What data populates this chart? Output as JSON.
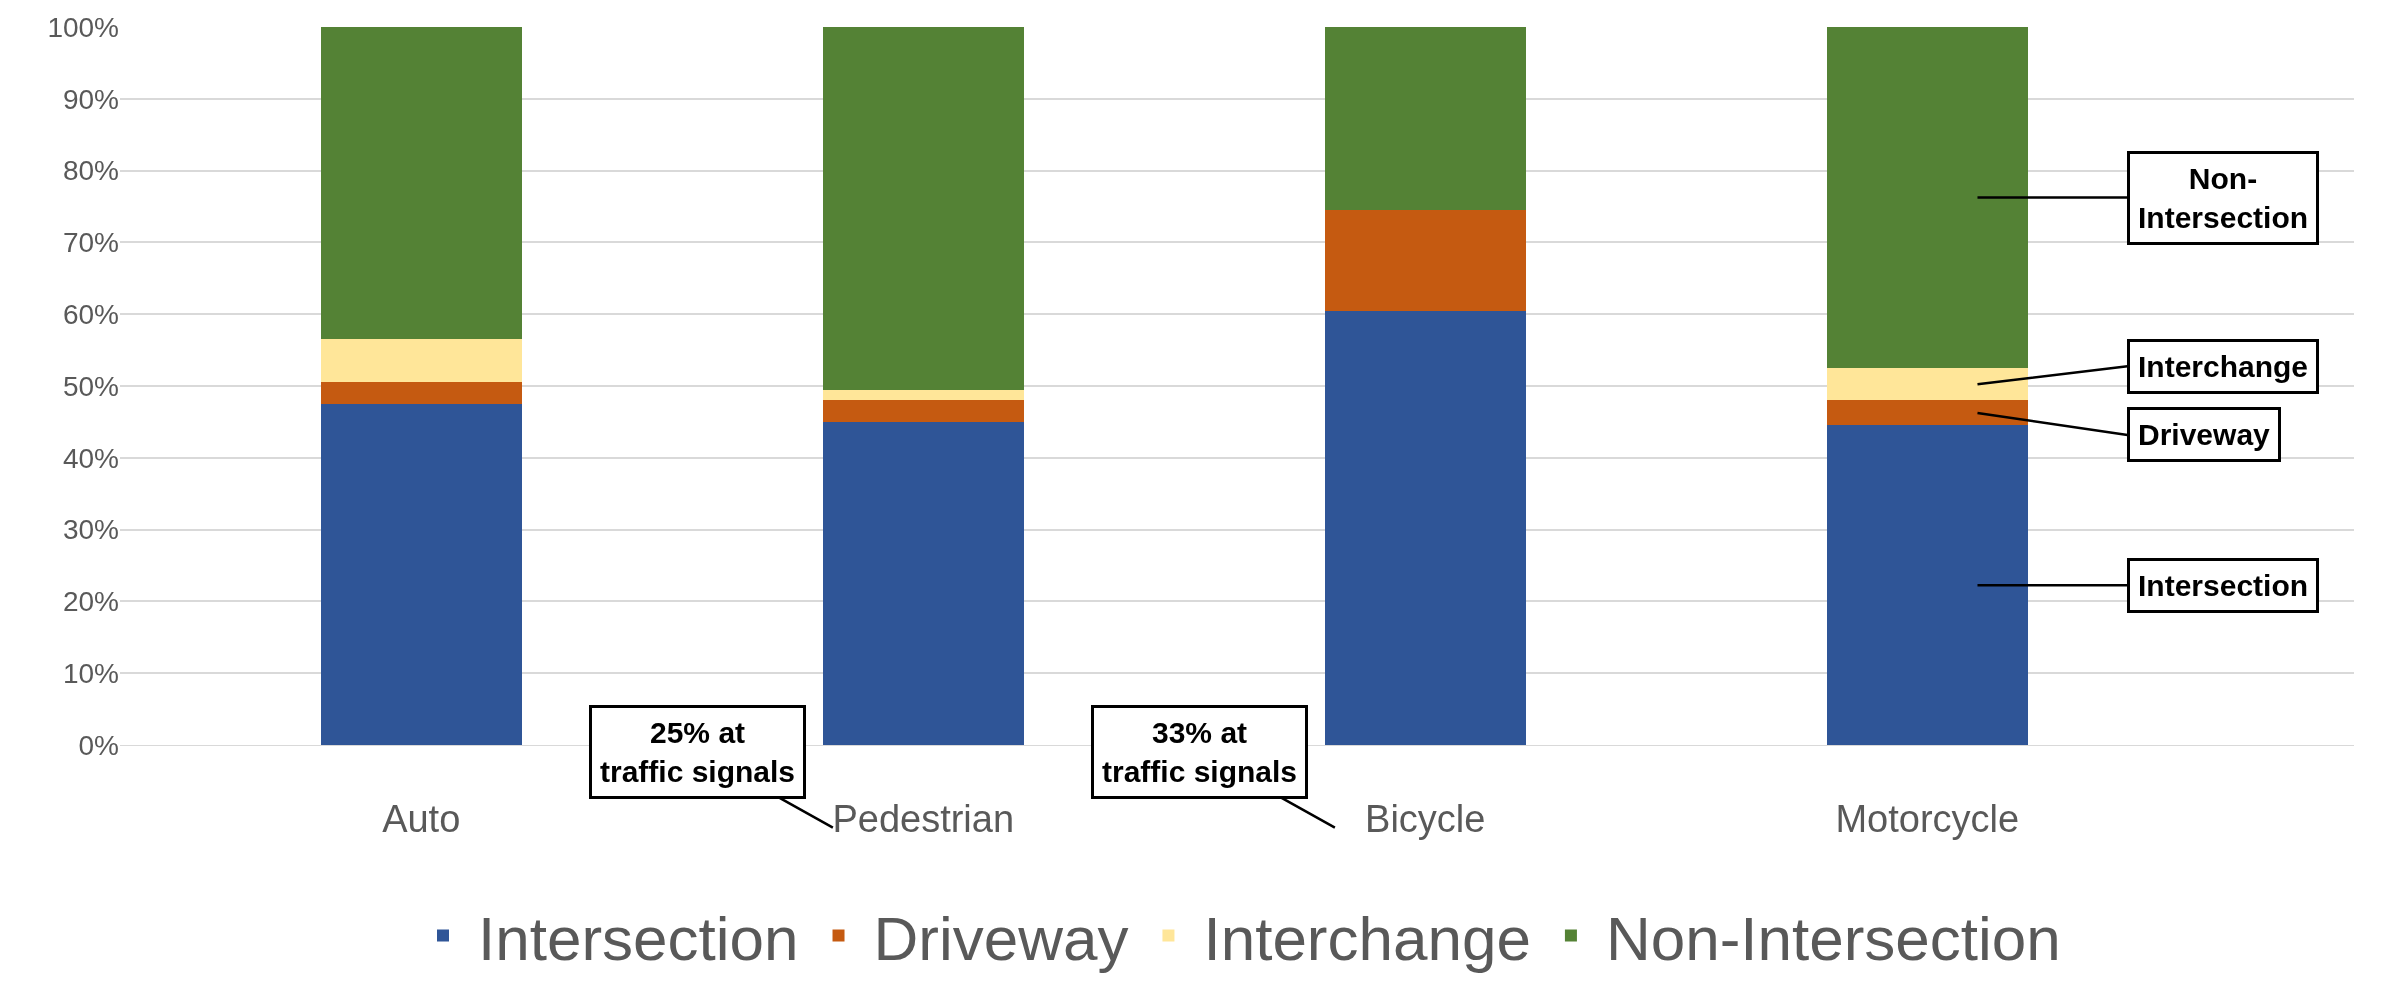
{
  "chart_data": {
    "type": "bar",
    "stacked": true,
    "categories": [
      "Auto",
      "Pedestrian",
      "Bicycle",
      "Motorcycle"
    ],
    "series": [
      {
        "name": "Intersection",
        "color": "#2f5597",
        "values": [
          47.5,
          45,
          60.5,
          44.5
        ]
      },
      {
        "name": "Driveway",
        "color": "#c55a11",
        "values": [
          3,
          3,
          14,
          3.5
        ]
      },
      {
        "name": "Interchange",
        "color": "#ffe699",
        "values": [
          6,
          1.5,
          0,
          4.5
        ]
      },
      {
        "name": "Non-Intersection",
        "color": "#548235",
        "values": [
          43.5,
          50.5,
          25.5,
          47.5
        ]
      }
    ],
    "ylim": [
      0,
      100
    ],
    "yticks": [
      {
        "value": 0,
        "label": "0%"
      },
      {
        "value": 10,
        "label": "10%"
      },
      {
        "value": 20,
        "label": "20%"
      },
      {
        "value": 30,
        "label": "30%"
      },
      {
        "value": 40,
        "label": "40%"
      },
      {
        "value": 50,
        "label": "50%"
      },
      {
        "value": 60,
        "label": "60%"
      },
      {
        "value": 70,
        "label": "70%"
      },
      {
        "value": 80,
        "label": "80%"
      },
      {
        "value": 90,
        "label": "90%"
      },
      {
        "value": 100,
        "label": "100%"
      }
    ],
    "grid": "y",
    "legend": "bottom",
    "annotations": [
      "25% at traffic signals",
      "33% at traffic signals",
      "Non-Intersection",
      "Interchange",
      "Driveway",
      "Intersection"
    ]
  }
}
